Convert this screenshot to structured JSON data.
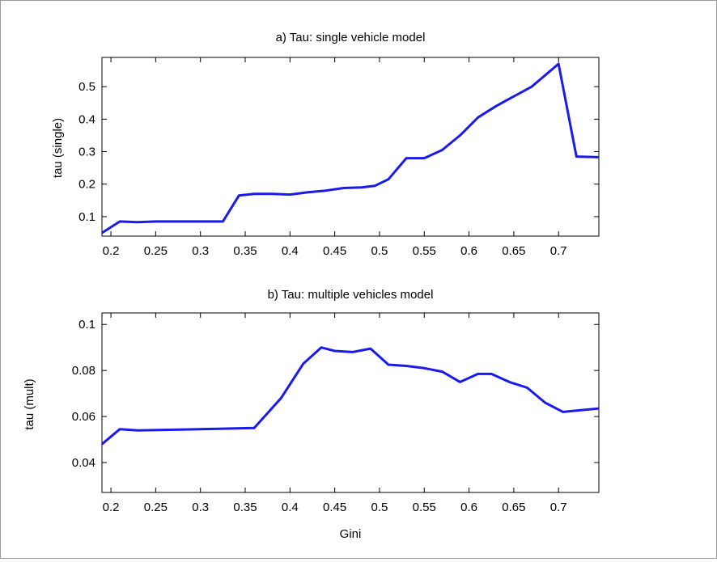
{
  "chart_data": [
    {
      "type": "line",
      "title": "a) Tau: single vehicle model",
      "xlabel": "",
      "ylabel": "tau (single)",
      "xlim": [
        0.19,
        0.745
      ],
      "ylim": [
        0.04,
        0.59
      ],
      "xticks": [
        0.2,
        0.25,
        0.3,
        0.35,
        0.4,
        0.45,
        0.5,
        0.55,
        0.6,
        0.65,
        0.7
      ],
      "xtick_labels": [
        "0.2",
        "0.25",
        "0.3",
        "0.35",
        "0.4",
        "0.45",
        "0.5",
        "0.55",
        "0.6",
        "0.65",
        "0.7"
      ],
      "yticks": [
        0.1,
        0.2,
        0.3,
        0.4,
        0.5
      ],
      "ytick_labels": [
        "0.1",
        "0.2",
        "0.3",
        "0.4",
        "0.5"
      ],
      "grid": false,
      "color": "#1a1aee",
      "series": [
        {
          "x": [
            0.19,
            0.21,
            0.23,
            0.25,
            0.3,
            0.325,
            0.343,
            0.36,
            0.38,
            0.4,
            0.42,
            0.44,
            0.46,
            0.48,
            0.495,
            0.51,
            0.53,
            0.55,
            0.57,
            0.59,
            0.61,
            0.63,
            0.65,
            0.67,
            0.7,
            0.72,
            0.745
          ],
          "y": [
            0.05,
            0.085,
            0.083,
            0.085,
            0.085,
            0.085,
            0.165,
            0.17,
            0.17,
            0.168,
            0.175,
            0.18,
            0.188,
            0.19,
            0.195,
            0.215,
            0.28,
            0.28,
            0.305,
            0.35,
            0.405,
            0.44,
            0.47,
            0.5,
            0.57,
            0.285,
            0.283
          ]
        }
      ]
    },
    {
      "type": "line",
      "title": "b) Tau: multiple vehicles model",
      "xlabel": "Gini",
      "ylabel": "tau (mult)",
      "xlim": [
        0.19,
        0.745
      ],
      "ylim": [
        0.027,
        0.105
      ],
      "xticks": [
        0.2,
        0.25,
        0.3,
        0.35,
        0.4,
        0.45,
        0.5,
        0.55,
        0.6,
        0.65,
        0.7
      ],
      "xtick_labels": [
        "0.2",
        "0.25",
        "0.3",
        "0.35",
        "0.4",
        "0.45",
        "0.5",
        "0.55",
        "0.6",
        "0.65",
        "0.7"
      ],
      "yticks": [
        0.04,
        0.06,
        0.08,
        0.1
      ],
      "ytick_labels": [
        "0.04",
        "0.06",
        "0.08",
        "0.1"
      ],
      "grid": false,
      "color": "#1a1aee",
      "series": [
        {
          "x": [
            0.19,
            0.21,
            0.23,
            0.3,
            0.36,
            0.39,
            0.415,
            0.435,
            0.45,
            0.47,
            0.49,
            0.51,
            0.53,
            0.55,
            0.57,
            0.59,
            0.61,
            0.625,
            0.645,
            0.665,
            0.685,
            0.705,
            0.745
          ],
          "y": [
            0.048,
            0.0545,
            0.054,
            0.0545,
            0.055,
            0.068,
            0.083,
            0.09,
            0.0885,
            0.088,
            0.0895,
            0.0825,
            0.082,
            0.081,
            0.0795,
            0.075,
            0.0785,
            0.0785,
            0.075,
            0.0725,
            0.066,
            0.062,
            0.0635
          ]
        }
      ]
    }
  ]
}
